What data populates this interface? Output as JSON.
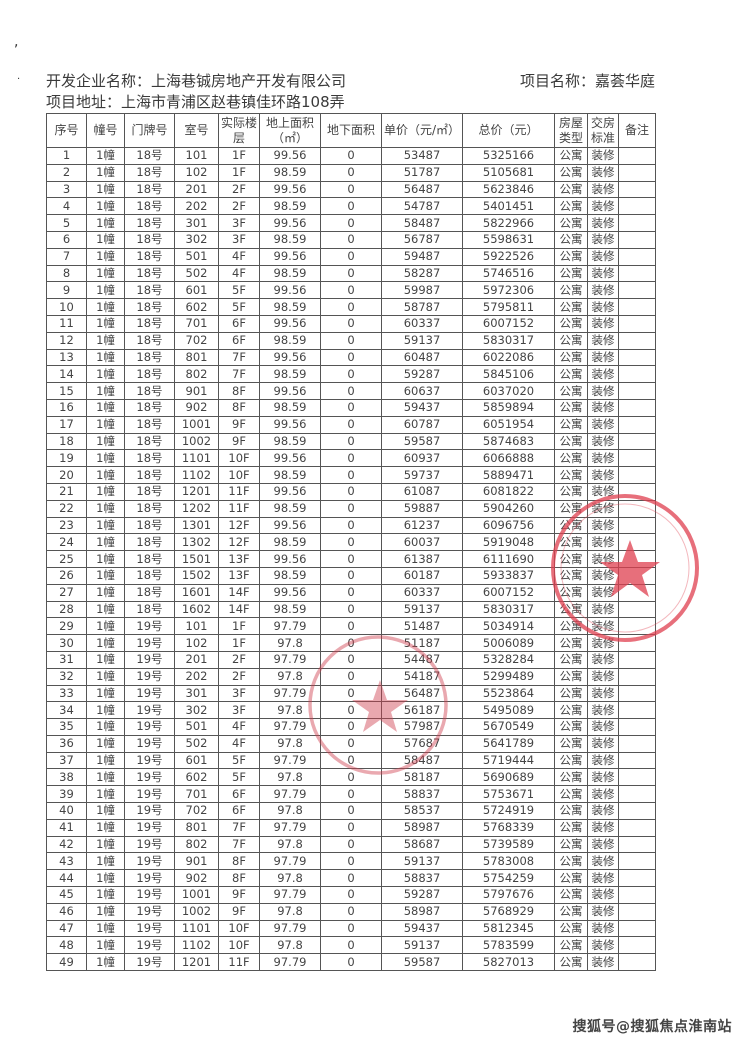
{
  "header": {
    "developer": "开发企业名称：上海巷铖房地产开发有限公司",
    "address": "项目地址：上海市青浦区赵巷镇佳环路108弄",
    "project": "项目名称：嘉荟华庭"
  },
  "columns": [
    "序号",
    "幢号",
    "门牌号",
    "室号",
    "实际楼层",
    "地上面积（㎡）",
    "地下面积",
    "单价（元/㎡）",
    "总价（元）",
    "房屋类型",
    "交房标准",
    "备注"
  ],
  "rows": [
    [
      "1",
      "1幢",
      "18号",
      "101",
      "1F",
      "99.56",
      "0",
      "53487",
      "5325166",
      "公寓",
      "装修",
      ""
    ],
    [
      "2",
      "1幢",
      "18号",
      "102",
      "1F",
      "98.59",
      "0",
      "51787",
      "5105681",
      "公寓",
      "装修",
      ""
    ],
    [
      "3",
      "1幢",
      "18号",
      "201",
      "2F",
      "99.56",
      "0",
      "56487",
      "5623846",
      "公寓",
      "装修",
      ""
    ],
    [
      "4",
      "1幢",
      "18号",
      "202",
      "2F",
      "98.59",
      "0",
      "54787",
      "5401451",
      "公寓",
      "装修",
      ""
    ],
    [
      "5",
      "1幢",
      "18号",
      "301",
      "3F",
      "99.56",
      "0",
      "58487",
      "5822966",
      "公寓",
      "装修",
      ""
    ],
    [
      "6",
      "1幢",
      "18号",
      "302",
      "3F",
      "98.59",
      "0",
      "56787",
      "5598631",
      "公寓",
      "装修",
      ""
    ],
    [
      "7",
      "1幢",
      "18号",
      "501",
      "4F",
      "99.56",
      "0",
      "59487",
      "5922526",
      "公寓",
      "装修",
      ""
    ],
    [
      "8",
      "1幢",
      "18号",
      "502",
      "4F",
      "98.59",
      "0",
      "58287",
      "5746516",
      "公寓",
      "装修",
      ""
    ],
    [
      "9",
      "1幢",
      "18号",
      "601",
      "5F",
      "99.56",
      "0",
      "59987",
      "5972306",
      "公寓",
      "装修",
      ""
    ],
    [
      "10",
      "1幢",
      "18号",
      "602",
      "5F",
      "98.59",
      "0",
      "58787",
      "5795811",
      "公寓",
      "装修",
      ""
    ],
    [
      "11",
      "1幢",
      "18号",
      "701",
      "6F",
      "99.56",
      "0",
      "60337",
      "6007152",
      "公寓",
      "装修",
      ""
    ],
    [
      "12",
      "1幢",
      "18号",
      "702",
      "6F",
      "98.59",
      "0",
      "59137",
      "5830317",
      "公寓",
      "装修",
      ""
    ],
    [
      "13",
      "1幢",
      "18号",
      "801",
      "7F",
      "99.56",
      "0",
      "60487",
      "6022086",
      "公寓",
      "装修",
      ""
    ],
    [
      "14",
      "1幢",
      "18号",
      "802",
      "7F",
      "98.59",
      "0",
      "59287",
      "5845106",
      "公寓",
      "装修",
      ""
    ],
    [
      "15",
      "1幢",
      "18号",
      "901",
      "8F",
      "99.56",
      "0",
      "60637",
      "6037020",
      "公寓",
      "装修",
      ""
    ],
    [
      "16",
      "1幢",
      "18号",
      "902",
      "8F",
      "98.59",
      "0",
      "59437",
      "5859894",
      "公寓",
      "装修",
      ""
    ],
    [
      "17",
      "1幢",
      "18号",
      "1001",
      "9F",
      "99.56",
      "0",
      "60787",
      "6051954",
      "公寓",
      "装修",
      ""
    ],
    [
      "18",
      "1幢",
      "18号",
      "1002",
      "9F",
      "98.59",
      "0",
      "59587",
      "5874683",
      "公寓",
      "装修",
      ""
    ],
    [
      "19",
      "1幢",
      "18号",
      "1101",
      "10F",
      "99.56",
      "0",
      "60937",
      "6066888",
      "公寓",
      "装修",
      ""
    ],
    [
      "20",
      "1幢",
      "18号",
      "1102",
      "10F",
      "98.59",
      "0",
      "59737",
      "5889471",
      "公寓",
      "装修",
      ""
    ],
    [
      "21",
      "1幢",
      "18号",
      "1201",
      "11F",
      "99.56",
      "0",
      "61087",
      "6081822",
      "公寓",
      "装修",
      ""
    ],
    [
      "22",
      "1幢",
      "18号",
      "1202",
      "11F",
      "98.59",
      "0",
      "59887",
      "5904260",
      "公寓",
      "装修",
      ""
    ],
    [
      "23",
      "1幢",
      "18号",
      "1301",
      "12F",
      "99.56",
      "0",
      "61237",
      "6096756",
      "公寓",
      "装修",
      ""
    ],
    [
      "24",
      "1幢",
      "18号",
      "1302",
      "12F",
      "98.59",
      "0",
      "60037",
      "5919048",
      "公寓",
      "装修",
      ""
    ],
    [
      "25",
      "1幢",
      "18号",
      "1501",
      "13F",
      "99.56",
      "0",
      "61387",
      "6111690",
      "公寓",
      "装修",
      ""
    ],
    [
      "26",
      "1幢",
      "18号",
      "1502",
      "13F",
      "98.59",
      "0",
      "60187",
      "5933837",
      "公寓",
      "装修",
      ""
    ],
    [
      "27",
      "1幢",
      "18号",
      "1601",
      "14F",
      "99.56",
      "0",
      "60337",
      "6007152",
      "公寓",
      "装修",
      ""
    ],
    [
      "28",
      "1幢",
      "18号",
      "1602",
      "14F",
      "98.59",
      "0",
      "59137",
      "5830317",
      "公寓",
      "装修",
      ""
    ],
    [
      "29",
      "1幢",
      "19号",
      "101",
      "1F",
      "97.79",
      "0",
      "51487",
      "5034914",
      "公寓",
      "装修",
      ""
    ],
    [
      "30",
      "1幢",
      "19号",
      "102",
      "1F",
      "97.8",
      "0",
      "51187",
      "5006089",
      "公寓",
      "装修",
      ""
    ],
    [
      "31",
      "1幢",
      "19号",
      "201",
      "2F",
      "97.79",
      "0",
      "54487",
      "5328284",
      "公寓",
      "装修",
      ""
    ],
    [
      "32",
      "1幢",
      "19号",
      "202",
      "2F",
      "97.8",
      "0",
      "54187",
      "5299489",
      "公寓",
      "装修",
      ""
    ],
    [
      "33",
      "1幢",
      "19号",
      "301",
      "3F",
      "97.79",
      "0",
      "56487",
      "5523864",
      "公寓",
      "装修",
      ""
    ],
    [
      "34",
      "1幢",
      "19号",
      "302",
      "3F",
      "97.8",
      "0",
      "56187",
      "5495089",
      "公寓",
      "装修",
      ""
    ],
    [
      "35",
      "1幢",
      "19号",
      "501",
      "4F",
      "97.79",
      "0",
      "57987",
      "5670549",
      "公寓",
      "装修",
      ""
    ],
    [
      "36",
      "1幢",
      "19号",
      "502",
      "4F",
      "97.8",
      "0",
      "57687",
      "5641789",
      "公寓",
      "装修",
      ""
    ],
    [
      "37",
      "1幢",
      "19号",
      "601",
      "5F",
      "97.79",
      "0",
      "58487",
      "5719444",
      "公寓",
      "装修",
      ""
    ],
    [
      "38",
      "1幢",
      "19号",
      "602",
      "5F",
      "97.8",
      "0",
      "58187",
      "5690689",
      "公寓",
      "装修",
      ""
    ],
    [
      "39",
      "1幢",
      "19号",
      "701",
      "6F",
      "97.79",
      "0",
      "58837",
      "5753671",
      "公寓",
      "装修",
      ""
    ],
    [
      "40",
      "1幢",
      "19号",
      "702",
      "6F",
      "97.8",
      "0",
      "58537",
      "5724919",
      "公寓",
      "装修",
      ""
    ],
    [
      "41",
      "1幢",
      "19号",
      "801",
      "7F",
      "97.79",
      "0",
      "58987",
      "5768339",
      "公寓",
      "装修",
      ""
    ],
    [
      "42",
      "1幢",
      "19号",
      "802",
      "7F",
      "97.8",
      "0",
      "58687",
      "5739589",
      "公寓",
      "装修",
      ""
    ],
    [
      "43",
      "1幢",
      "19号",
      "901",
      "8F",
      "97.79",
      "0",
      "59137",
      "5783008",
      "公寓",
      "装修",
      ""
    ],
    [
      "44",
      "1幢",
      "19号",
      "902",
      "8F",
      "97.8",
      "0",
      "58837",
      "5754259",
      "公寓",
      "装修",
      ""
    ],
    [
      "45",
      "1幢",
      "19号",
      "1001",
      "9F",
      "97.79",
      "0",
      "59287",
      "5797676",
      "公寓",
      "装修",
      ""
    ],
    [
      "46",
      "1幢",
      "19号",
      "1002",
      "9F",
      "97.8",
      "0",
      "58987",
      "5768929",
      "公寓",
      "装修",
      ""
    ],
    [
      "47",
      "1幢",
      "19号",
      "1101",
      "10F",
      "97.79",
      "0",
      "59437",
      "5812345",
      "公寓",
      "装修",
      ""
    ],
    [
      "48",
      "1幢",
      "19号",
      "1102",
      "10F",
      "97.8",
      "0",
      "59137",
      "5783599",
      "公寓",
      "装修",
      ""
    ],
    [
      "49",
      "1幢",
      "19号",
      "1201",
      "11F",
      "97.79",
      "0",
      "59587",
      "5827013",
      "公寓",
      "装修",
      ""
    ]
  ],
  "stamp_color": "#e04050",
  "watermark": "搜狐号@搜狐焦点淮南站"
}
